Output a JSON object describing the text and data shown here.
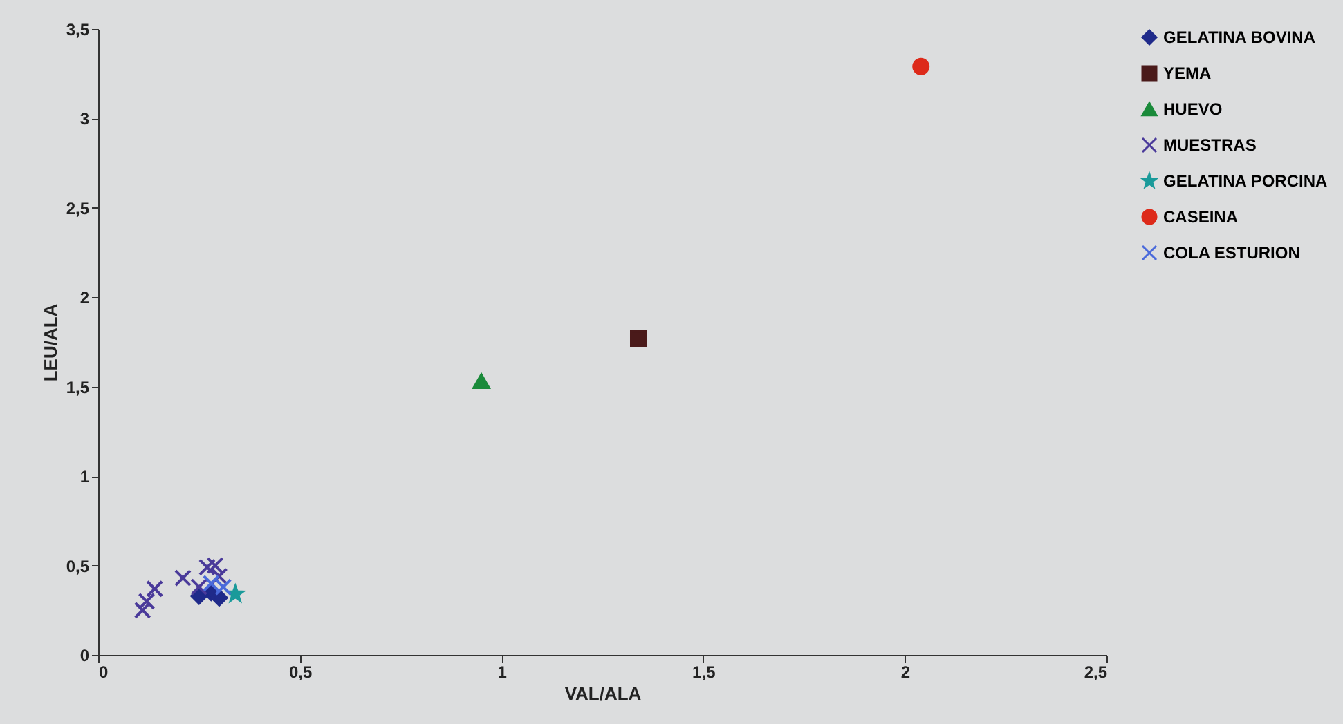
{
  "chart_data": {
    "type": "scatter",
    "xlabel": "VAL/ALA",
    "ylabel": "LEU/ALA",
    "xlim": [
      0,
      2.5
    ],
    "xticks": [
      0,
      {
        "value": 0.5,
        "label": "0,5"
      },
      1,
      {
        "value": 1.5,
        "label": "1,5"
      },
      2,
      {
        "value": 2.5,
        "label": "2,5"
      }
    ],
    "ylim": [
      0,
      3.5
    ],
    "yticks": [
      0,
      {
        "value": 0.5,
        "label": "0,5"
      },
      1,
      {
        "value": 1.5,
        "label": "1,5"
      },
      2,
      {
        "value": 2.5,
        "label": "2,5"
      },
      3,
      {
        "value": 3.5,
        "label": "3,5"
      }
    ],
    "legend": "right",
    "series": [
      {
        "name": "GELATINA BOVINA",
        "color": "#1f2a8a",
        "marker": "diamond",
        "x": [
          0.25,
          0.28,
          0.3
        ],
        "values": [
          0.33,
          0.35,
          0.32
        ]
      },
      {
        "name": "YEMA",
        "color": "#4a1a1a",
        "marker": "square",
        "x": [
          1.34
        ],
        "values": [
          1.77
        ]
      },
      {
        "name": "HUEVO",
        "color": "#1a8a3a",
        "marker": "triangle",
        "x": [
          0.95
        ],
        "values": [
          1.53
        ]
      },
      {
        "name": "MUESTRAS",
        "color": "#4a3a9a",
        "marker": "cross",
        "x": [
          0.11,
          0.12,
          0.14,
          0.21,
          0.25,
          0.27,
          0.29,
          0.3
        ],
        "values": [
          0.25,
          0.3,
          0.37,
          0.43,
          0.38,
          0.49,
          0.5,
          0.44
        ]
      },
      {
        "name": "GELATINA PORCINA",
        "color": "#1a9a9a",
        "marker": "star",
        "x": [
          0.34
        ],
        "values": [
          0.34
        ]
      },
      {
        "name": "CASEINA",
        "color": "#dd2a1a",
        "marker": "circle",
        "x": [
          2.04
        ],
        "values": [
          3.29
        ]
      },
      {
        "name": "COLA ESTURION",
        "color": "#4a6adb",
        "marker": "cross",
        "x": [
          0.28,
          0.31
        ],
        "values": [
          0.4,
          0.38
        ]
      }
    ]
  }
}
